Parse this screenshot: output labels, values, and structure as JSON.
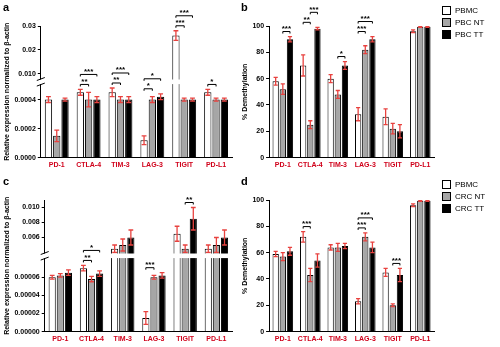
{
  "chart_data": [
    {
      "type": "bar",
      "panel_label": "a",
      "y_label": "Relative expression normalized to β-actin",
      "categories": [
        "PD-1",
        "CTLA-4",
        "TIM-3",
        "LAG-3",
        "TIGIT",
        "PD-L1"
      ],
      "series": [
        {
          "name": "PBMC",
          "color": "#ffffff",
          "values": [
            0.0004,
            0.00045,
            0.00045,
            0.00012,
            0.026,
            0.00045
          ],
          "errors": [
            2e-05,
            2e-05,
            3e-05,
            3e-05,
            0.002,
            2e-05
          ]
        },
        {
          "name": "PBC NT",
          "color": "#a6a6a6",
          "values": [
            0.00015,
            0.0004,
            0.0004,
            0.0004,
            0.0004,
            0.0004
          ],
          "errors": [
            4e-05,
            5e-05,
            2e-05,
            2e-05,
            1e-05,
            1e-05
          ]
        },
        {
          "name": "PBC TT",
          "color": "#000000",
          "values": [
            0.0004,
            0.0004,
            0.0004,
            0.00042,
            0.0004,
            0.0004
          ],
          "errors": [
            1e-05,
            2e-05,
            2e-05,
            2e-05,
            1e-05,
            1e-05
          ]
        }
      ],
      "ylim": [
        [
          0,
          0.0005
        ],
        [
          0.008,
          0.03
        ]
      ],
      "yticks": [
        [
          {
            "value": 0,
            "label": "0.0000"
          },
          0.0002,
          0.0004
        ],
        [
          {
            "value": 0.01,
            "label": "0.010"
          },
          0.02,
          0.03
        ]
      ],
      "grid": false,
      "annotations": [
        {
          "category": "CTLA-4",
          "pair": [
            "PBMC",
            "PBC NT"
          ],
          "label": "**"
        },
        {
          "category": "CTLA-4",
          "pair": [
            "PBMC",
            "PBC TT"
          ],
          "label": "***"
        },
        {
          "category": "TIM-3",
          "pair": [
            "PBMC",
            "PBC NT"
          ],
          "label": "**"
        },
        {
          "category": "TIM-3",
          "pair": [
            "PBMC",
            "PBC TT"
          ],
          "label": "***"
        },
        {
          "category": "LAG-3",
          "pair": [
            "PBMC",
            "PBC NT"
          ],
          "label": "*"
        },
        {
          "category": "LAG-3",
          "pair": [
            "PBMC",
            "PBC TT"
          ],
          "label": "*"
        },
        {
          "category": "TIGIT",
          "pair": [
            "PBMC",
            "PBC NT"
          ],
          "label": "***"
        },
        {
          "category": "TIGIT",
          "pair": [
            "PBMC",
            "PBC TT"
          ],
          "label": "***"
        },
        {
          "category": "PD-L1",
          "pair": [
            "PBMC",
            "PBC NT"
          ],
          "label": "*"
        }
      ]
    },
    {
      "type": "bar",
      "panel_label": "b",
      "y_label": "% Demethylation",
      "categories": [
        "PD-1",
        "CTLA-4",
        "TIM-3",
        "LAG-3",
        "TIGIT",
        "PD-L1"
      ],
      "series": [
        {
          "name": "PBMC",
          "color": "#ffffff",
          "values": [
            58,
            70,
            60,
            33,
            31,
            96
          ],
          "errors": [
            3,
            8,
            3,
            5,
            6,
            1
          ]
        },
        {
          "name": "PBC NT",
          "color": "#a6a6a6",
          "values": [
            52,
            25,
            48,
            82,
            22,
            99.5
          ],
          "errors": [
            4,
            3,
            3,
            3,
            4,
            0.5
          ]
        },
        {
          "name": "PBC TT",
          "color": "#000000",
          "values": [
            90,
            98,
            70,
            90,
            20,
            99.5
          ],
          "errors": [
            2,
            1,
            3,
            2,
            5,
            0.5
          ]
        }
      ],
      "ylim": [
        0,
        100
      ],
      "yticks": [
        0,
        20,
        40,
        60,
        80,
        100
      ],
      "grid": false,
      "legend": "right",
      "annotations": [
        {
          "category": "PD-1",
          "pair": [
            "PBC NT",
            "PBC TT"
          ],
          "label": "***"
        },
        {
          "category": "CTLA-4",
          "pair": [
            "PBMC",
            "PBC NT"
          ],
          "label": "**"
        },
        {
          "category": "CTLA-4",
          "pair": [
            "PBC NT",
            "PBC TT"
          ],
          "label": "***"
        },
        {
          "category": "TIM-3",
          "pair": [
            "PBC NT",
            "PBC TT"
          ],
          "label": "*"
        },
        {
          "category": "LAG-3",
          "pair": [
            "PBMC",
            "PBC NT"
          ],
          "label": "***"
        },
        {
          "category": "LAG-3",
          "pair": [
            "PBMC",
            "PBC TT"
          ],
          "label": "***"
        }
      ]
    },
    {
      "type": "bar",
      "panel_label": "c",
      "y_label": "Relative expression normalized to β-actin",
      "categories": [
        "PD-1",
        "CTLA-4",
        "TIM-3",
        "LAG-3",
        "TIGIT",
        "PD-L1"
      ],
      "series": [
        {
          "name": "PBMC",
          "color": "#ffffff",
          "values": [
            6e-05,
            7e-05,
            0.0045,
            1.5e-05,
            0.0065,
            0.0045
          ],
          "errors": [
            2e-06,
            3e-06,
            0.0005,
            7e-06,
            0.001,
            0.0005
          ]
        },
        {
          "name": "CRC NT",
          "color": "#a6a6a6",
          "values": [
            6.2e-05,
            5.8e-05,
            0.005,
            6e-05,
            0.0045,
            0.005
          ],
          "errors": [
            2e-06,
            3e-06,
            0.0008,
            2e-06,
            0.0005,
            0.001
          ]
        },
        {
          "name": "CRC TT",
          "color": "#000000",
          "values": [
            6.5e-05,
            6.4e-05,
            0.006,
            6.2e-05,
            0.0085,
            0.006
          ],
          "errors": [
            3e-06,
            3e-06,
            0.001,
            3e-06,
            0.0015,
            0.001
          ]
        }
      ],
      "ylim": [
        [
          0,
          8e-05
        ],
        [
          0.004,
          0.011
        ]
      ],
      "yticks": [
        [
          {
            "value": 0,
            "label": "0.00000"
          },
          2e-05,
          4e-05,
          6e-05
        ],
        [
          0.006,
          0.008,
          {
            "value": 0.01,
            "label": "0.010"
          }
        ]
      ],
      "grid": false,
      "annotations": [
        {
          "category": "CTLA-4",
          "pair": [
            "PBMC",
            "CRC NT"
          ],
          "label": "**"
        },
        {
          "category": "CTLA-4",
          "pair": [
            "PBMC",
            "CRC TT"
          ],
          "label": "*"
        },
        {
          "category": "LAG-3",
          "pair": [
            "PBMC",
            "CRC NT"
          ],
          "label": "***"
        },
        {
          "category": "TIGIT",
          "pair": [
            "CRC NT",
            "CRC TT"
          ],
          "label": "**"
        }
      ]
    },
    {
      "type": "bar",
      "panel_label": "d",
      "y_label": "% Demethylation",
      "categories": [
        "PD-1",
        "CTLA-4",
        "TIM-3",
        "LAG-3",
        "TIGIT",
        "PD-L1"
      ],
      "series": [
        {
          "name": "PBMC",
          "color": "#ffffff",
          "values": [
            59,
            72,
            64,
            23,
            45,
            96
          ],
          "errors": [
            2,
            4,
            2,
            2,
            3,
            1
          ]
        },
        {
          "name": "CRC NT",
          "color": "#a6a6a6",
          "values": [
            57,
            43,
            64,
            72,
            20,
            99.5
          ],
          "errors": [
            3,
            5,
            3,
            3,
            1,
            0.5
          ]
        },
        {
          "name": "CRC TT",
          "color": "#000000",
          "values": [
            61,
            54,
            65,
            64,
            43,
            99.5
          ],
          "errors": [
            3,
            5,
            2,
            4,
            5,
            0.5
          ]
        }
      ],
      "ylim": [
        0,
        100
      ],
      "yticks": [
        0,
        20,
        40,
        60,
        80,
        100
      ],
      "grid": false,
      "legend": "right",
      "annotations": [
        {
          "category": "CTLA-4",
          "pair": [
            "PBMC",
            "CRC NT"
          ],
          "label": "***"
        },
        {
          "category": "LAG-3",
          "pair": [
            "PBMC",
            "CRC NT"
          ],
          "label": "***"
        },
        {
          "category": "LAG-3",
          "pair": [
            "PBMC",
            "CRC TT"
          ],
          "label": "***"
        },
        {
          "category": "TIGIT",
          "pair": [
            "CRC NT",
            "CRC TT"
          ],
          "label": "***"
        }
      ]
    }
  ]
}
